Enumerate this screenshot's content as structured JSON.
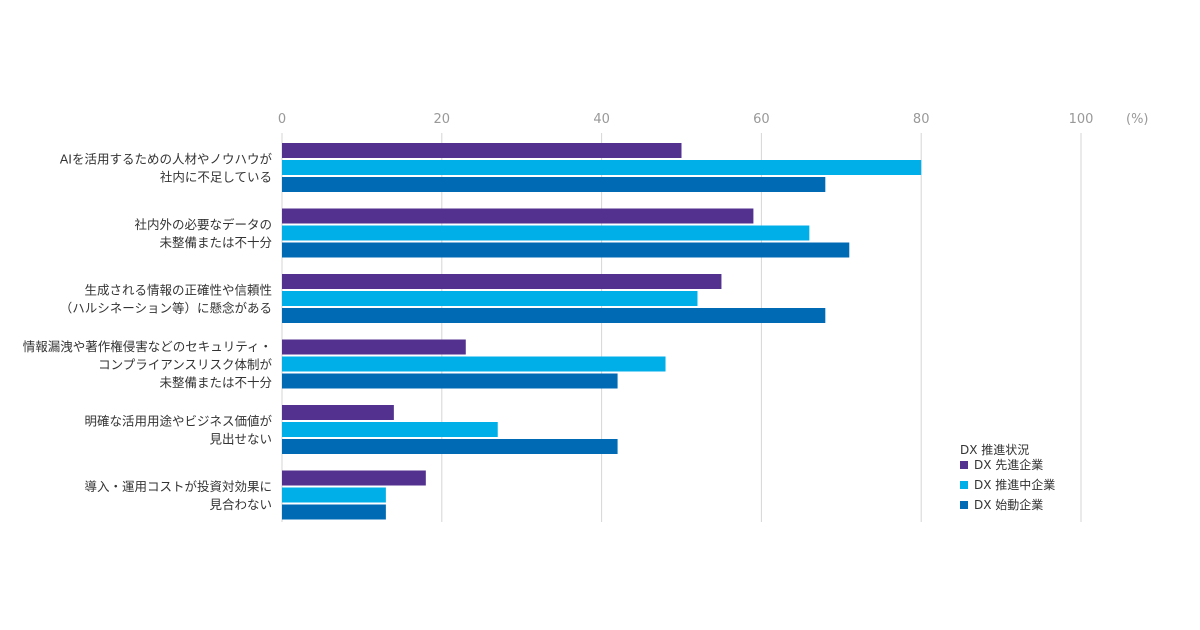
{
  "chart_data": {
    "type": "bar",
    "orientation": "horizontal",
    "unit": "(%)",
    "xlim": [
      0,
      100
    ],
    "ticks": [
      0,
      20,
      40,
      60,
      80,
      100
    ],
    "grid": true,
    "categories": [
      [
        "AIを活用するための人材やノウハウが",
        "社内に不足している"
      ],
      [
        "社内外の必要なデータの",
        "未整備または不十分"
      ],
      [
        "生成される情報の正確性や信頼性",
        "（ハルシネーション等）に懸念がある"
      ],
      [
        "情報漏洩や著作権侵害などのセキュリティ・",
        "コンプライアンスリスク体制が",
        "未整備または不十分"
      ],
      [
        "明確な活用用途やビジネス価値が",
        "見出せない"
      ],
      [
        "導入・運用コストが投資対効果に",
        "見合わない"
      ]
    ],
    "series": [
      {
        "name": "DX 先進企業",
        "color": "#53318f",
        "values": [
          50,
          59,
          55,
          23,
          14,
          18
        ]
      },
      {
        "name": "DX 推進中企業",
        "color": "#00aee8",
        "values": [
          80,
          66,
          52,
          48,
          27,
          13
        ]
      },
      {
        "name": "DX 始動企業",
        "color": "#006ab4",
        "values": [
          68,
          71,
          68,
          42,
          42,
          13
        ]
      }
    ],
    "legend": {
      "title": "DX 推進状況",
      "position": "bottom-right"
    }
  }
}
